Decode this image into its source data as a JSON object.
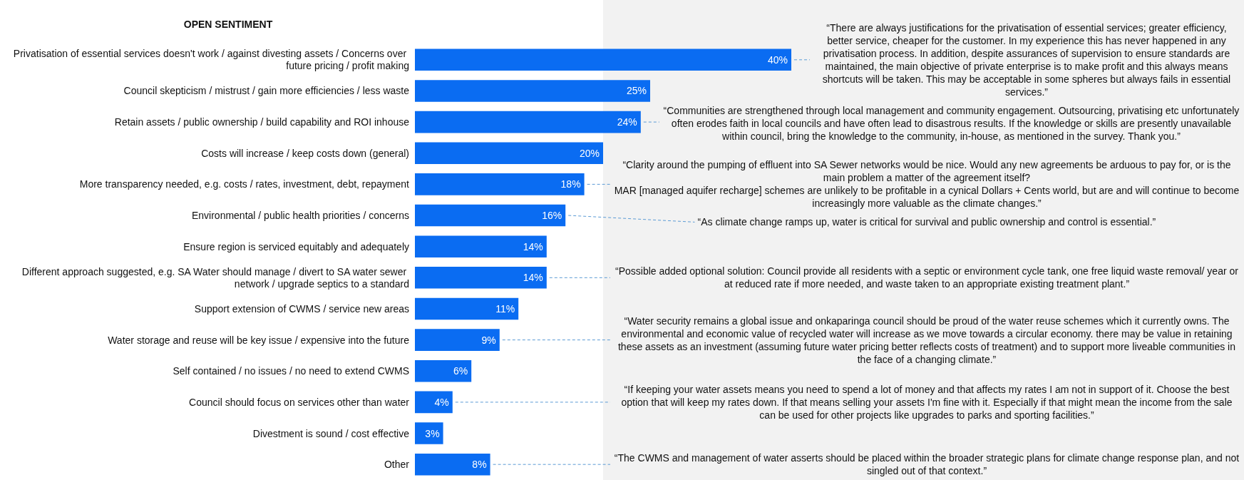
{
  "chart_data": {
    "type": "bar",
    "orientation": "horizontal",
    "title": "OPEN SENTIMENT",
    "color": "#0a6cf2",
    "categories": [
      "Privatisation of essential services doesn't work / against divesting assets / Concerns over future pricing / profit making",
      "Council skepticism / mistrust / gain more efficiencies / less waste",
      "Retain assets / public ownership / build capability and ROI inhouse",
      "Costs will increase / keep costs down (general)",
      "More transparency needed, e.g. costs / rates, investment, debt, repayment",
      "Environmental / public health priorities / concerns",
      "Ensure region is serviced equitably and adequately",
      "Different approach suggested, e.g. SA Water should manage / divert to SA water sewer network / upgrade septics to a standard",
      "Support extension of CWMS / service new areas",
      "Water storage and reuse will be key issue / expensive into the future",
      "Self contained / no issues / no need to extend CWMS",
      "Council should focus on services other than water",
      "Divestment is sound / cost effective",
      "Other"
    ],
    "values": [
      40,
      25,
      24,
      20,
      18,
      16,
      14,
      14,
      11,
      9,
      6,
      4,
      3,
      8
    ],
    "value_labels": [
      "40%",
      "25%",
      "24%",
      "20%",
      "18%",
      "16%",
      "14%",
      "14%",
      "11%",
      "9%",
      "6%",
      "4%",
      "3%",
      "8%"
    ],
    "annotations": [
      {
        "text": "“There are always justifications for the privatisation of essential services; greater efficiency, better service, cheaper for the customer. In my experience this has never happened in any privatisation process. In addition, despite assurances of supervision to ensure standards are maintained, the main objective of private enterprise is to make profit and this always means shortcuts will be taken. This may be acceptable in some spheres but always fails in essential services.”",
        "x": 40,
        "y": "Privatisation of essential services doesn't work / against divesting assets / Concerns over future pricing / profit making"
      },
      {
        "text": "“Communities are strengthened through local management and community engagement. Outsourcing, privatising etc unfortunately often erodes faith in local councils and have often lead to disastrous results. If the knowledge or skills are presently unavailable within council, bring the knowledge to the community, in-house, as mentioned in the survey. Thank you.”",
        "x": 24,
        "y": "Retain assets / public ownership / build capability and ROI inhouse"
      },
      {
        "text": "“Clarity around the pumping of effluent into SA Sewer networks would be nice. Would any new agreements be arduous to pay for, or is the main problem a matter of the agreement itself?\nMAR [managed aquifer recharge] schemes are unlikely to be profitable in a cynical Dollars + Cents world, but are and will continue to become increasingly more valuable as the climate changes.”",
        "x": 18,
        "y": "More transparency needed, e.g. costs / rates, investment, debt, repayment"
      },
      {
        "text": "“As climate change ramps up, water is critical for survival and public ownership and control is essential.”",
        "x": 16,
        "y": "Environmental / public health priorities / concerns"
      },
      {
        "text": "“Possible added optional solution: Council provide all residents with a septic or environment cycle tank, one free liquid waste removal/ year or at reduced rate if more needed,  and waste taken to an appropriate existing treatment plant.”",
        "x": 14,
        "y": "Different approach suggested, e.g. SA Water should manage / divert to SA water sewer network / upgrade septics to a standard"
      },
      {
        "text": "“Water security remains a global issue and onkaparinga council should be proud of the water reuse schemes which it currently owns. The environmental and economic value of recycled water will increase as we move towards a circular economy. there may be value in retaining these assets as an investment (assuming future water pricing better reflects costs of treatment) and to support more liveable communities in the face of a changing climate.”",
        "x": 9,
        "y": "Water storage and reuse will be key issue / expensive into the future"
      },
      {
        "text": "“If keeping your water assets means you need to spend a lot of money and that affects my rates I am not in support of it. Choose the best option that will keep my rates down. If that means selling your assets I'm fine with it. Especially if that might mean the income from the sale can be used for other projects like upgrades to parks and sporting facilities.”",
        "x": 4,
        "y": "Council should focus on services other than water"
      },
      {
        "text": "“The CWMS and management of water asserts should be placed within the broader strategic plans for climate change response plan, and not singled out of that context.”",
        "x": 8,
        "y": "Other"
      }
    ]
  }
}
